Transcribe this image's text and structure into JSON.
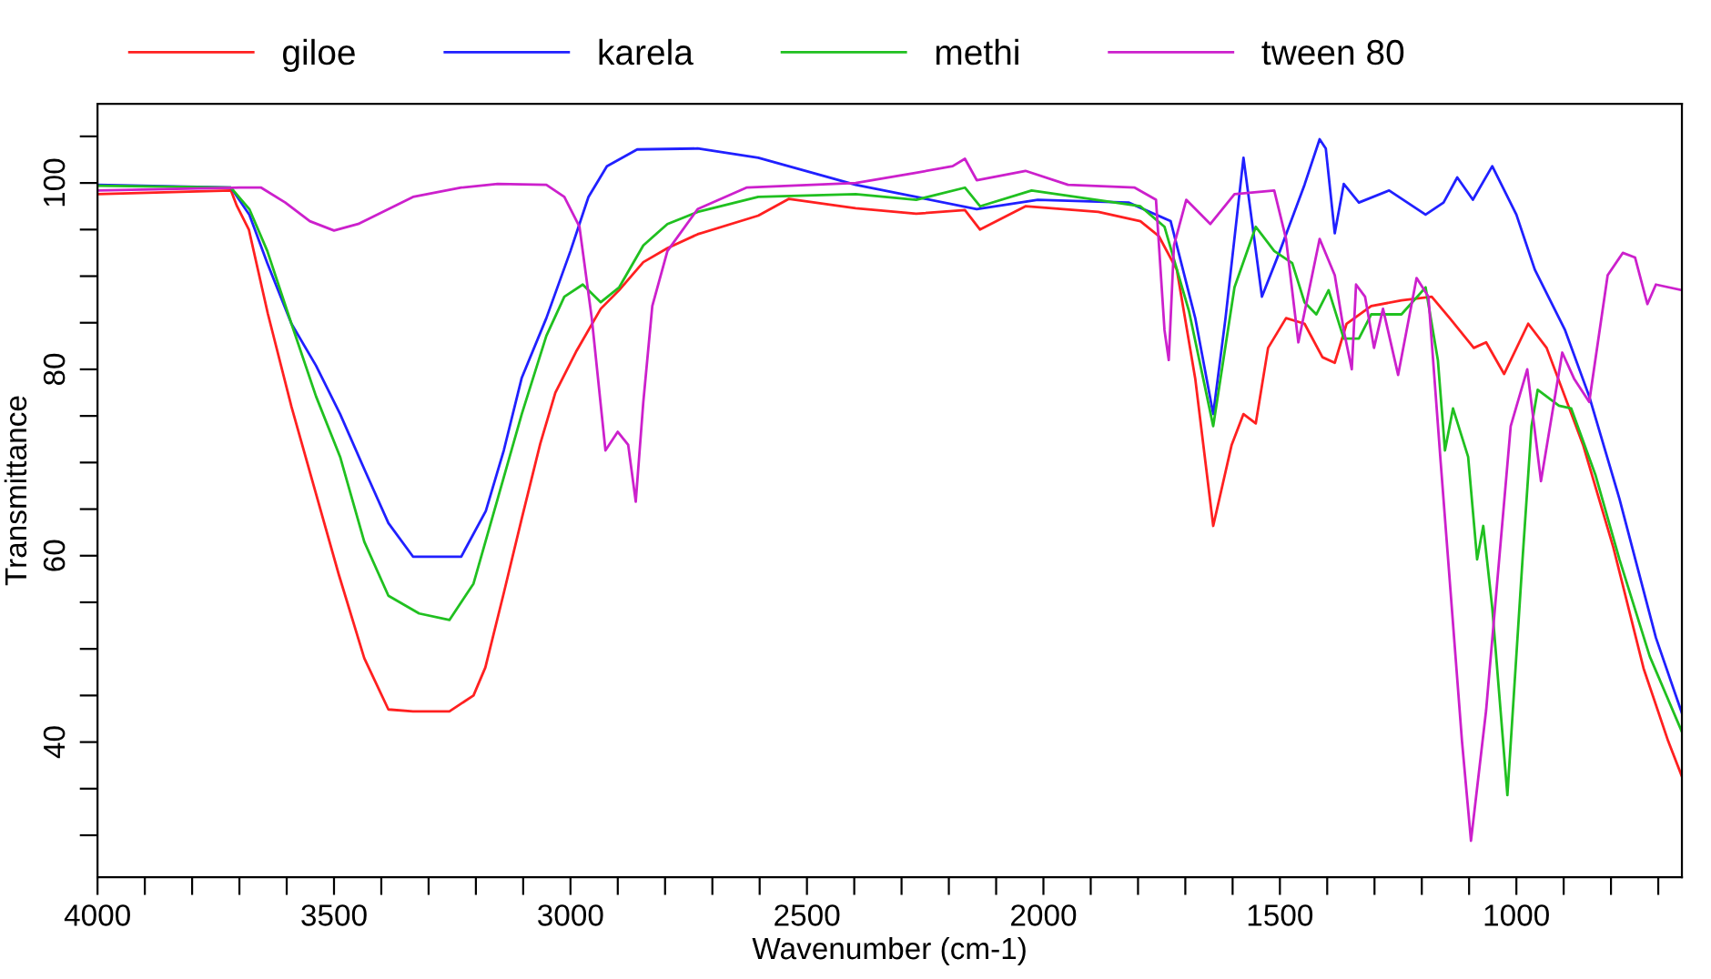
{
  "chart_data": {
    "type": "line",
    "xlabel": "Wavenumber (cm-1)",
    "ylabel": "Transmittance",
    "xlim": [
      4000,
      650
    ],
    "ylim": [
      25.5,
      108.5
    ],
    "xticks": [
      4000,
      {
        "value": 3900,
        "label": null
      },
      {
        "value": 3800,
        "label": null
      },
      {
        "value": 3700,
        "label": null
      },
      {
        "value": 3600,
        "label": null
      },
      3500,
      {
        "value": 3400,
        "label": null
      },
      {
        "value": 3300,
        "label": null
      },
      {
        "value": 3200,
        "label": null
      },
      {
        "value": 3100,
        "label": null
      },
      3000,
      {
        "value": 2900,
        "label": null
      },
      {
        "value": 2800,
        "label": null
      },
      {
        "value": 2700,
        "label": null
      },
      {
        "value": 2600,
        "label": null
      },
      2500,
      {
        "value": 2400,
        "label": null
      },
      {
        "value": 2300,
        "label": null
      },
      {
        "value": 2200,
        "label": null
      },
      {
        "value": 2100,
        "label": null
      },
      2000,
      {
        "value": 1900,
        "label": null
      },
      {
        "value": 1800,
        "label": null
      },
      {
        "value": 1700,
        "label": null
      },
      {
        "value": 1600,
        "label": null
      },
      1500,
      {
        "value": 1400,
        "label": null
      },
      {
        "value": 1300,
        "label": null
      },
      {
        "value": 1200,
        "label": null
      },
      {
        "value": 1100,
        "label": null
      },
      1000,
      {
        "value": 900,
        "label": null
      },
      {
        "value": 800,
        "label": null
      },
      {
        "value": 700,
        "label": null
      }
    ],
    "yticks": [
      {
        "value": 30,
        "label": null
      },
      {
        "value": 35,
        "label": null
      },
      40,
      {
        "value": 45,
        "label": null
      },
      {
        "value": 50,
        "label": null
      },
      {
        "value": 55,
        "label": null
      },
      60,
      {
        "value": 65,
        "label": null
      },
      {
        "value": 70,
        "label": null
      },
      {
        "value": 75,
        "label": null
      },
      80,
      {
        "value": 85,
        "label": null
      },
      {
        "value": 90,
        "label": null
      },
      {
        "value": 95,
        "label": null
      },
      100,
      {
        "value": 105,
        "label": null
      }
    ],
    "grid": false,
    "legend": "top",
    "marker": "none",
    "line_style": "solid",
    "series": [
      {
        "name": "giloe",
        "color": "#ff2020",
        "x": [
          4000,
          3718,
          3705,
          3680,
          3640,
          3590,
          3540,
          3490,
          3436,
          3385,
          3333,
          3256,
          3205,
          3180,
          3141,
          3103,
          3064,
          3032,
          2987,
          2936,
          2897,
          2846,
          2795,
          2731,
          2603,
          2538,
          2397,
          2269,
          2166,
          2134,
          2038,
          1884,
          1795,
          1756,
          1718,
          1679,
          1641,
          1602,
          1577,
          1551,
          1525,
          1487,
          1448,
          1410,
          1384,
          1359,
          1307,
          1243,
          1179,
          1141,
          1090,
          1064,
          1026,
          975,
          936,
          859,
          795,
          731,
          679,
          650
        ],
        "values": [
          98.8,
          99.2,
          97.5,
          95,
          86,
          76,
          67,
          58,
          49,
          43.5,
          43.3,
          43.3,
          45,
          48,
          56,
          64,
          72,
          77.5,
          82,
          86.5,
          88.5,
          91.5,
          93,
          94.5,
          96.5,
          98.3,
          97.3,
          96.7,
          97.1,
          95,
          97.5,
          96.9,
          95.9,
          94.3,
          90.7,
          79,
          63.2,
          71.9,
          75.2,
          74.2,
          82.3,
          85.5,
          84.9,
          81.3,
          80.7,
          84.9,
          86.8,
          87.4,
          87.8,
          85.5,
          82.3,
          82.9,
          79.5,
          84.9,
          82.3,
          71.9,
          60.9,
          47.9,
          40.1,
          36.3
        ]
      },
      {
        "name": "karela",
        "color": "#2020ff",
        "x": [
          4000,
          3718,
          3679,
          3641,
          3590,
          3538,
          3487,
          3436,
          3385,
          3333,
          3231,
          3179,
          3141,
          3103,
          3051,
          3000,
          2962,
          2923,
          2859,
          2731,
          2603,
          2397,
          2269,
          2141,
          2012,
          1820,
          1731,
          1679,
          1641,
          1615,
          1577,
          1538,
          1500,
          1448,
          1416,
          1403,
          1384,
          1365,
          1333,
          1269,
          1192,
          1154,
          1125,
          1092,
          1051,
          1000,
          961,
          897,
          846,
          782,
          705,
          650
        ],
        "values": [
          99.8,
          99.5,
          96.6,
          91.4,
          84.9,
          80.4,
          75.2,
          69.3,
          63.5,
          59.9,
          59.9,
          64.8,
          71.3,
          79.1,
          85.5,
          92.7,
          98.5,
          101.8,
          103.6,
          103.7,
          102.7,
          99.8,
          98.5,
          97.2,
          98.2,
          97.9,
          95.9,
          85.5,
          75.2,
          85.5,
          102.7,
          87.8,
          92.7,
          99.8,
          104.7,
          103.7,
          94.6,
          99.9,
          97.9,
          99.2,
          96.6,
          97.9,
          100.6,
          98.2,
          101.8,
          96.6,
          90.7,
          84.2,
          77.1,
          66.1,
          51.2,
          43.1
        ]
      },
      {
        "name": "methi",
        "color": "#20c020",
        "x": [
          4000,
          3718,
          3679,
          3641,
          3590,
          3538,
          3487,
          3436,
          3385,
          3320,
          3256,
          3205,
          3154,
          3103,
          3051,
          3013,
          2974,
          2936,
          2897,
          2846,
          2795,
          2731,
          2603,
          2397,
          2269,
          2166,
          2134,
          2025,
          1795,
          1744,
          1692,
          1641,
          1596,
          1551,
          1512,
          1474,
          1448,
          1423,
          1397,
          1365,
          1333,
          1307,
          1243,
          1192,
          1166,
          1151,
          1134,
          1102,
          1083,
          1070,
          1051,
          1019,
          987,
          968,
          955,
          910,
          884,
          833,
          782,
          718,
          650
        ],
        "values": [
          99.7,
          99.5,
          97.2,
          92.7,
          84.9,
          77.1,
          70.6,
          61.5,
          55.7,
          53.8,
          53.1,
          57,
          66.1,
          75.2,
          83.6,
          87.8,
          89.1,
          87.2,
          88.8,
          93.3,
          95.6,
          96.9,
          98.5,
          98.8,
          98.2,
          99.5,
          97.5,
          99.2,
          97.5,
          95.3,
          86.2,
          73.9,
          88.8,
          95.3,
          92.7,
          91.4,
          87.2,
          85.9,
          88.5,
          83.3,
          83.3,
          85.9,
          85.9,
          88.8,
          81,
          71.3,
          75.8,
          70.6,
          59.6,
          63.2,
          54.4,
          34.3,
          59.6,
          73.9,
          77.8,
          76.1,
          75.8,
          68.7,
          59.6,
          49.2,
          41.1
        ]
      },
      {
        "name": "tween 80",
        "color": "#cc20cc",
        "x": [
          4000,
          3700,
          3654,
          3603,
          3551,
          3500,
          3449,
          3333,
          3231,
          3154,
          3051,
          3013,
          2981,
          2955,
          2926,
          2900,
          2878,
          2862,
          2846,
          2827,
          2795,
          2731,
          2628,
          2397,
          2269,
          2192,
          2166,
          2141,
          2038,
          1948,
          1807,
          1762,
          1744,
          1735,
          1724,
          1698,
          1647,
          1596,
          1512,
          1487,
          1461,
          1416,
          1384,
          1365,
          1348,
          1339,
          1320,
          1301,
          1282,
          1250,
          1211,
          1186,
          1160,
          1115,
          1096,
          1064,
          1012,
          977,
          948,
          903,
          878,
          846,
          807,
          775,
          749,
          723,
          705,
          650
        ],
        "values": [
          99.2,
          99.5,
          99.5,
          97.9,
          95.9,
          94.9,
          95.6,
          98.5,
          99.5,
          99.9,
          99.8,
          98.5,
          95.3,
          85.5,
          71.3,
          73.3,
          71.9,
          65.8,
          76.5,
          86.8,
          92.7,
          97.2,
          99.5,
          100,
          101.1,
          101.8,
          102.6,
          100.3,
          101.3,
          99.8,
          99.5,
          98.2,
          84.2,
          81,
          93.3,
          98.2,
          95.6,
          98.8,
          99.2,
          94,
          82.9,
          94,
          90.1,
          84.2,
          80,
          89.1,
          87.8,
          82.3,
          86.5,
          79.4,
          89.8,
          87.8,
          70,
          40.1,
          29.4,
          43.4,
          73.9,
          80,
          68,
          81.8,
          79,
          76.5,
          90.1,
          92.5,
          92,
          87,
          89.1,
          88.5
        ]
      }
    ]
  }
}
